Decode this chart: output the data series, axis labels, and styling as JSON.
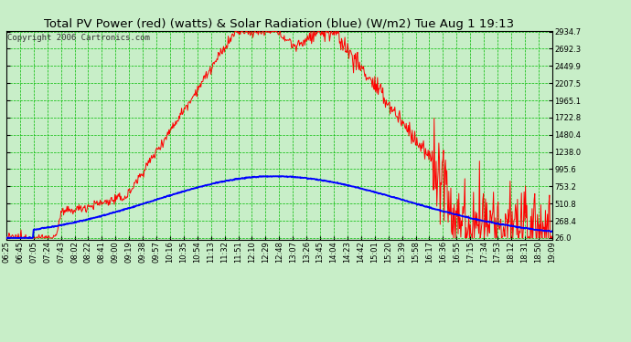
{
  "title": "Total PV Power (red) (watts) & Solar Radiation (blue) (W/m2) Tue Aug 1 19:13",
  "copyright": "Copyright 2006 Cartronics.com",
  "bg_color": "#c8eec8",
  "plot_bg_color": "#c8eec8",
  "grid_color": "#00bb00",
  "yticks": [
    26.0,
    268.4,
    510.8,
    753.2,
    995.6,
    1238.0,
    1480.4,
    1722.8,
    1965.1,
    2207.5,
    2449.9,
    2692.3,
    2934.7
  ],
  "xtick_labels": [
    "06:25",
    "06:45",
    "07:05",
    "07:24",
    "07:43",
    "08:02",
    "08:22",
    "08:41",
    "09:00",
    "09:19",
    "09:38",
    "09:57",
    "10:16",
    "10:35",
    "10:54",
    "11:13",
    "11:32",
    "11:51",
    "12:10",
    "12:29",
    "12:48",
    "13:07",
    "13:26",
    "13:45",
    "14:04",
    "14:23",
    "14:42",
    "15:01",
    "15:20",
    "15:39",
    "15:58",
    "16:17",
    "16:36",
    "16:55",
    "17:15",
    "17:34",
    "17:53",
    "18:12",
    "18:31",
    "18:50",
    "19:09"
  ],
  "red_line_color": "#ff0000",
  "blue_line_color": "#0000ff",
  "title_fontsize": 9.5,
  "copyright_fontsize": 6.5,
  "tick_fontsize": 6,
  "ymin": 26.0,
  "ymax": 2934.7,
  "n_points": 820
}
